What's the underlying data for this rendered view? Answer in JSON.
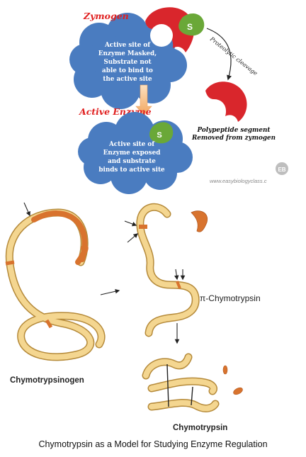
{
  "top_panel": {
    "zymogen_label": "Zymogen",
    "zymogen_cloud_lines": [
      "Active site of",
      "Enzyme Masked,",
      "Substrate not",
      "able to bind to",
      "the active site"
    ],
    "cleavage_label": "Proteolytic cleavage",
    "active_enzyme_label": "Active Enzyme",
    "active_cloud_lines": [
      "Active site of",
      "Enzyme exposed",
      "and substrate",
      "binds to active site"
    ],
    "segment_caption_lines": [
      "Polypeptide segment",
      "Removed from zymogen"
    ],
    "substrate_symbol": "S",
    "watermark_logo": "EB",
    "watermark_url": "www.easybiologyclass.c"
  },
  "bottom_panel": {
    "chymotrypsinogen_label": "Chymotrypsinogen",
    "pi_chymotrypsin_label": "π-Chymotrypsin",
    "chymotrypsin_label": "Chymotrypsin"
  },
  "caption": "Chymotrypsin as a Model for Studying Enzyme Regulation",
  "colors": {
    "cloud": "#4a7cc0",
    "red_enzyme": "#d9262c",
    "label_red": "#e02020",
    "substrate_green": "#6aa838",
    "chain_fill": "#f4d690",
    "chain_stroke": "#b58a3a",
    "chain_segment": "#d8732e"
  }
}
